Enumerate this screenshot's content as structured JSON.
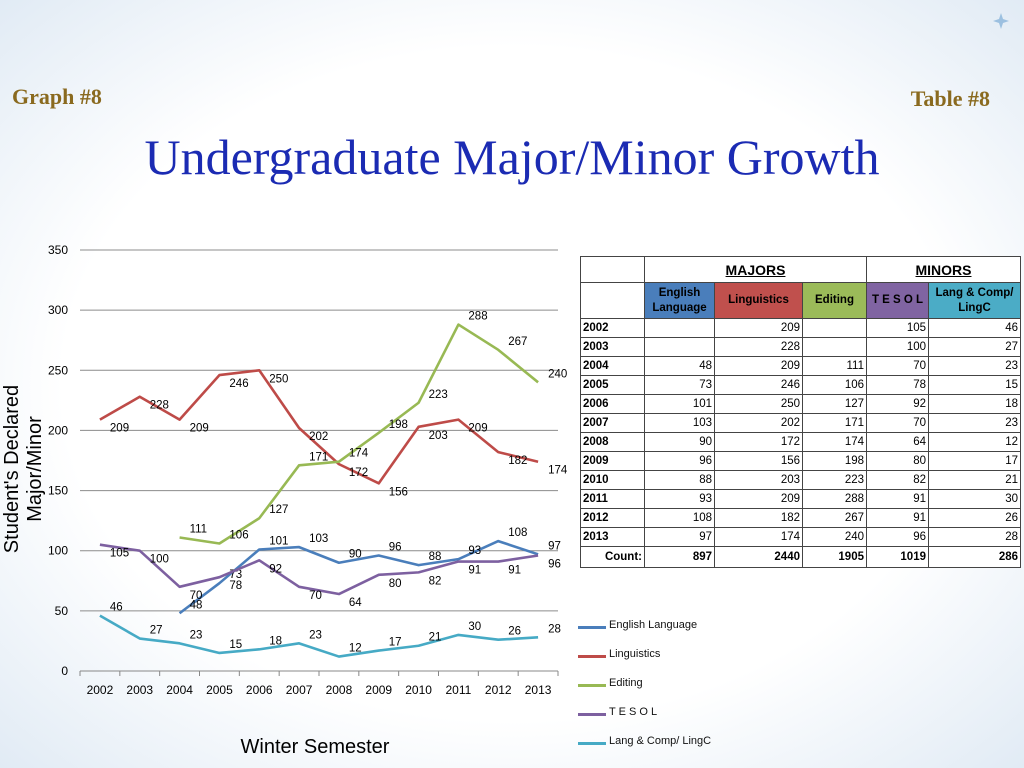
{
  "header": {
    "graph_label": "Graph #8",
    "table_label": "Table #8",
    "title": "Undergraduate Major/Minor Growth"
  },
  "chart_data": {
    "type": "line",
    "x": [
      "2002",
      "2003",
      "2004",
      "2005",
      "2006",
      "2007",
      "2008",
      "2009",
      "2010",
      "2011",
      "2012",
      "2013"
    ],
    "xlabel": "Winter Semester",
    "ylabel": "Student's Declared Major/Minor",
    "ylim": [
      0,
      350
    ],
    "yticks": [
      0,
      50,
      100,
      150,
      200,
      250,
      300,
      350
    ],
    "grid": true,
    "legend": "right",
    "series": [
      {
        "name": "English Language",
        "color": "#4a7ebb",
        "values": [
          null,
          null,
          48,
          73,
          101,
          103,
          90,
          96,
          88,
          93,
          108,
          97
        ]
      },
      {
        "name": "Linguistics",
        "color": "#be4b48",
        "values": [
          209,
          228,
          209,
          246,
          250,
          202,
          172,
          156,
          203,
          209,
          182,
          174
        ]
      },
      {
        "name": "Editing",
        "color": "#98b954",
        "values": [
          null,
          null,
          111,
          106,
          127,
          171,
          174,
          198,
          223,
          288,
          267,
          240
        ]
      },
      {
        "name": "T E S O L",
        "color": "#7d60a0",
        "values": [
          105,
          100,
          70,
          78,
          92,
          70,
          64,
          80,
          82,
          91,
          91,
          96
        ]
      },
      {
        "name": "Lang & Comp/ LingC",
        "color": "#46aac5",
        "values": [
          46,
          27,
          23,
          15,
          18,
          23,
          12,
          17,
          21,
          30,
          26,
          28
        ]
      }
    ]
  },
  "table": {
    "group_majors": "MAJORS",
    "group_minors": "MINORS",
    "headers": [
      "English Language",
      "Linguistics",
      "Editing",
      "T E S O L",
      "Lang & Comp/ LingC"
    ],
    "header_colors": [
      "#4a7ebb",
      "#c0504d",
      "#9bbb59",
      "#8064a2",
      "#4bacc6"
    ],
    "rows": [
      [
        "2002",
        "",
        "209",
        "",
        "105",
        "46"
      ],
      [
        "2003",
        "",
        "228",
        "",
        "100",
        "27"
      ],
      [
        "2004",
        "48",
        "209",
        "111",
        "70",
        "23"
      ],
      [
        "2005",
        "73",
        "246",
        "106",
        "78",
        "15"
      ],
      [
        "2006",
        "101",
        "250",
        "127",
        "92",
        "18"
      ],
      [
        "2007",
        "103",
        "202",
        "171",
        "70",
        "23"
      ],
      [
        "2008",
        "90",
        "172",
        "174",
        "64",
        "12"
      ],
      [
        "2009",
        "96",
        "156",
        "198",
        "80",
        "17"
      ],
      [
        "2010",
        "88",
        "203",
        "223",
        "82",
        "21"
      ],
      [
        "2011",
        "93",
        "209",
        "288",
        "91",
        "30"
      ],
      [
        "2012",
        "108",
        "182",
        "267",
        "91",
        "26"
      ],
      [
        "2013",
        "97",
        "174",
        "240",
        "96",
        "28"
      ]
    ],
    "count_label": "Count:",
    "counts": [
      "897",
      "2440",
      "1905",
      "1019",
      "286"
    ]
  }
}
